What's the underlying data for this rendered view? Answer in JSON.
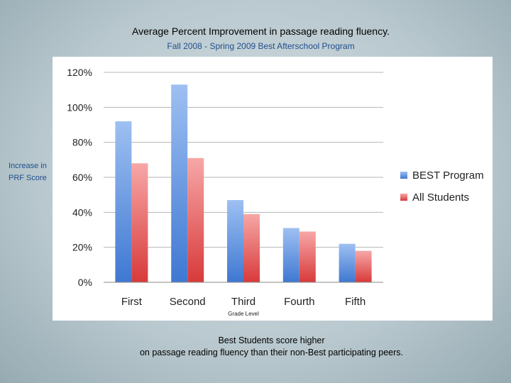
{
  "header": {
    "title": "Average Percent Improvement in passage reading fluency.",
    "subtitle": "Fall 2008 - Spring 2009 Best Afterschool Program"
  },
  "side_label": {
    "line1": "Increase in",
    "line2": "PRF Score"
  },
  "caption": {
    "line1": "Best Students score higher",
    "line2": "on passage reading fluency than their non-Best participating peers."
  },
  "colors": {
    "best": "#6d9de3",
    "all": "#e86b6b",
    "grid": "#b5b5b5"
  },
  "chart_data": {
    "type": "bar",
    "xlabel": "Grade Level",
    "ylabel": "",
    "categories": [
      "First",
      "Second",
      "Third",
      "Fourth",
      "Fifth"
    ],
    "ylim": [
      0,
      1.2
    ],
    "yticks": [
      0,
      0.2,
      0.4,
      0.6,
      0.8,
      1.0,
      1.2
    ],
    "ytick_labels": [
      "0%",
      "20%",
      "40%",
      "60%",
      "80%",
      "100%",
      "120%"
    ],
    "grid": true,
    "legend": "right",
    "series": [
      {
        "name": "BEST Program",
        "values": [
          0.92,
          1.13,
          0.47,
          0.31,
          0.22
        ]
      },
      {
        "name": "All Students",
        "values": [
          0.68,
          0.71,
          0.39,
          0.29,
          0.18
        ]
      }
    ]
  }
}
